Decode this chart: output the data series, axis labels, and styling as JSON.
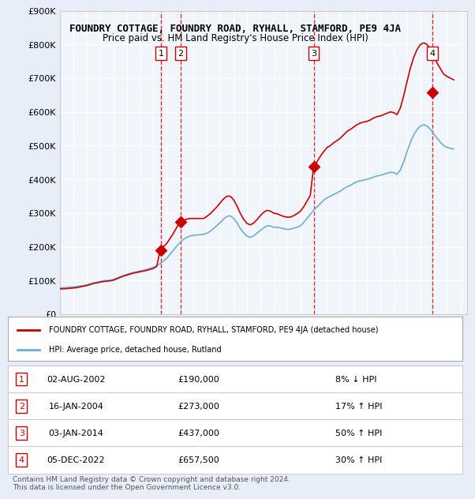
{
  "title": "FOUNDRY COTTAGE, FOUNDRY ROAD, RYHALL, STAMFORD, PE9 4JA",
  "subtitle": "Price paid vs. HM Land Registry's House Price Index (HPI)",
  "ylabel_ticks": [
    "£0",
    "£100K",
    "£200K",
    "£300K",
    "£400K",
    "£500K",
    "£600K",
    "£700K",
    "£800K",
    "£900K"
  ],
  "ylim": [
    0,
    900000
  ],
  "xlim_start": 1995.0,
  "xlim_end": 2025.5,
  "background_color": "#e8eef8",
  "plot_bg_color": "#f0f4fb",
  "grid_color": "#ffffff",
  "sales": [
    {
      "num": 1,
      "date": "02-AUG-2002",
      "price": 190000,
      "hpi_diff": "8% ↓ HPI",
      "year": 2002.58
    },
    {
      "num": 2,
      "date": "16-JAN-2004",
      "price": 273000,
      "hpi_diff": "17% ↑ HPI",
      "year": 2004.04
    },
    {
      "num": 3,
      "date": "03-JAN-2014",
      "price": 437000,
      "hpi_diff": "50% ↑ HPI",
      "year": 2014.01
    },
    {
      "num": 4,
      "date": "05-DEC-2022",
      "price": 657500,
      "hpi_diff": "30% ↑ HPI",
      "year": 2022.92
    }
  ],
  "legend_label_red": "FOUNDRY COTTAGE, FOUNDRY ROAD, RYHALL, STAMFORD, PE9 4JA (detached house)",
  "legend_label_blue": "HPI: Average price, detached house, Rutland",
  "footer": "Contains HM Land Registry data © Crown copyright and database right 2024.\nThis data is licensed under the Open Government Licence v3.0.",
  "hpi_data_x": [
    1995.0,
    1995.25,
    1995.5,
    1995.75,
    1996.0,
    1996.25,
    1996.5,
    1996.75,
    1997.0,
    1997.25,
    1997.5,
    1997.75,
    1998.0,
    1998.25,
    1998.5,
    1998.75,
    1999.0,
    1999.25,
    1999.5,
    1999.75,
    2000.0,
    2000.25,
    2000.5,
    2000.75,
    2001.0,
    2001.25,
    2001.5,
    2001.75,
    2002.0,
    2002.25,
    2002.5,
    2002.75,
    2003.0,
    2003.25,
    2003.5,
    2003.75,
    2004.0,
    2004.25,
    2004.5,
    2004.75,
    2005.0,
    2005.25,
    2005.5,
    2005.75,
    2006.0,
    2006.25,
    2006.5,
    2006.75,
    2007.0,
    2007.25,
    2007.5,
    2007.75,
    2008.0,
    2008.25,
    2008.5,
    2008.75,
    2009.0,
    2009.25,
    2009.5,
    2009.75,
    2010.0,
    2010.25,
    2010.5,
    2010.75,
    2011.0,
    2011.25,
    2011.5,
    2011.75,
    2012.0,
    2012.25,
    2012.5,
    2012.75,
    2013.0,
    2013.25,
    2013.5,
    2013.75,
    2014.0,
    2014.25,
    2014.5,
    2014.75,
    2015.0,
    2015.25,
    2015.5,
    2015.75,
    2016.0,
    2016.25,
    2016.5,
    2016.75,
    2017.0,
    2017.25,
    2017.5,
    2017.75,
    2018.0,
    2018.25,
    2018.5,
    2018.75,
    2019.0,
    2019.25,
    2019.5,
    2019.75,
    2020.0,
    2020.25,
    2020.5,
    2020.75,
    2021.0,
    2021.25,
    2021.5,
    2021.75,
    2022.0,
    2022.25,
    2022.5,
    2022.75,
    2023.0,
    2023.25,
    2023.5,
    2023.75,
    2024.0,
    2024.25,
    2024.5
  ],
  "hpi_data_y": [
    78000,
    78500,
    79000,
    80000,
    81000,
    82000,
    83500,
    85000,
    87000,
    90000,
    93000,
    95000,
    97000,
    99000,
    100000,
    101000,
    103000,
    107000,
    111000,
    115000,
    118000,
    121000,
    124000,
    126000,
    128000,
    130000,
    133000,
    136000,
    139000,
    144000,
    150000,
    158000,
    166000,
    178000,
    190000,
    202000,
    213000,
    222000,
    228000,
    232000,
    234000,
    235000,
    236000,
    237000,
    240000,
    246000,
    254000,
    263000,
    272000,
    282000,
    290000,
    292000,
    285000,
    272000,
    255000,
    242000,
    232000,
    228000,
    232000,
    240000,
    248000,
    256000,
    262000,
    262000,
    258000,
    258000,
    256000,
    254000,
    252000,
    252000,
    255000,
    258000,
    262000,
    272000,
    284000,
    296000,
    308000,
    318000,
    328000,
    338000,
    345000,
    350000,
    355000,
    360000,
    365000,
    372000,
    378000,
    382000,
    388000,
    393000,
    396000,
    398000,
    400000,
    403000,
    407000,
    410000,
    412000,
    415000,
    418000,
    421000,
    420000,
    415000,
    428000,
    452000,
    482000,
    510000,
    532000,
    548000,
    558000,
    562000,
    558000,
    548000,
    535000,
    522000,
    510000,
    500000,
    495000,
    492000,
    490000
  ],
  "property_data_x": [
    1995.0,
    1995.25,
    1995.5,
    1995.75,
    1996.0,
    1996.25,
    1996.5,
    1996.75,
    1997.0,
    1997.25,
    1997.5,
    1997.75,
    1998.0,
    1998.25,
    1998.5,
    1998.75,
    1999.0,
    1999.25,
    1999.5,
    1999.75,
    2000.0,
    2000.25,
    2000.5,
    2000.75,
    2001.0,
    2001.25,
    2001.5,
    2001.75,
    2002.0,
    2002.25,
    2002.5,
    2002.75,
    2003.0,
    2003.25,
    2003.5,
    2003.75,
    2004.0,
    2004.25,
    2004.5,
    2004.75,
    2005.0,
    2005.25,
    2005.5,
    2005.75,
    2006.0,
    2006.25,
    2006.5,
    2006.75,
    2007.0,
    2007.25,
    2007.5,
    2007.75,
    2008.0,
    2008.25,
    2008.5,
    2008.75,
    2009.0,
    2009.25,
    2009.5,
    2009.75,
    2010.0,
    2010.25,
    2010.5,
    2010.75,
    2011.0,
    2011.25,
    2011.5,
    2011.75,
    2012.0,
    2012.25,
    2012.5,
    2012.75,
    2013.0,
    2013.25,
    2013.5,
    2013.75,
    2014.0,
    2014.25,
    2014.5,
    2014.75,
    2015.0,
    2015.25,
    2015.5,
    2015.75,
    2016.0,
    2016.25,
    2016.5,
    2016.75,
    2017.0,
    2017.25,
    2017.5,
    2017.75,
    2018.0,
    2018.25,
    2018.5,
    2018.75,
    2019.0,
    2019.25,
    2019.5,
    2019.75,
    2020.0,
    2020.25,
    2020.5,
    2020.75,
    2021.0,
    2021.25,
    2021.5,
    2021.75,
    2022.0,
    2022.25,
    2022.5,
    2022.75,
    2023.0,
    2023.25,
    2023.5,
    2023.75,
    2024.0,
    2024.25,
    2024.5
  ],
  "property_data_y": [
    75000,
    75500,
    76000,
    77000,
    78000,
    79000,
    81000,
    83000,
    85000,
    88000,
    91000,
    93000,
    95000,
    97000,
    98000,
    99000,
    101000,
    105000,
    109000,
    113000,
    116000,
    119000,
    122000,
    124000,
    126000,
    128000,
    130000,
    133000,
    136000,
    142000,
    190000,
    200000,
    210000,
    225000,
    240000,
    258000,
    273000,
    278000,
    282000,
    284000,
    284000,
    284000,
    284000,
    284000,
    290000,
    298000,
    308000,
    318000,
    330000,
    342000,
    350000,
    350000,
    340000,
    322000,
    300000,
    282000,
    270000,
    265000,
    270000,
    280000,
    292000,
    302000,
    308000,
    306000,
    300000,
    298000,
    294000,
    290000,
    288000,
    288000,
    292000,
    298000,
    305000,
    318000,
    335000,
    352000,
    437000,
    452000,
    468000,
    482000,
    494000,
    500000,
    508000,
    515000,
    522000,
    532000,
    542000,
    548000,
    555000,
    562000,
    567000,
    570000,
    572000,
    576000,
    582000,
    586000,
    588000,
    592000,
    596000,
    600000,
    598000,
    592000,
    612000,
    648000,
    690000,
    730000,
    762000,
    785000,
    800000,
    805000,
    800000,
    785000,
    766000,
    745000,
    728000,
    712000,
    705000,
    700000,
    695000
  ]
}
